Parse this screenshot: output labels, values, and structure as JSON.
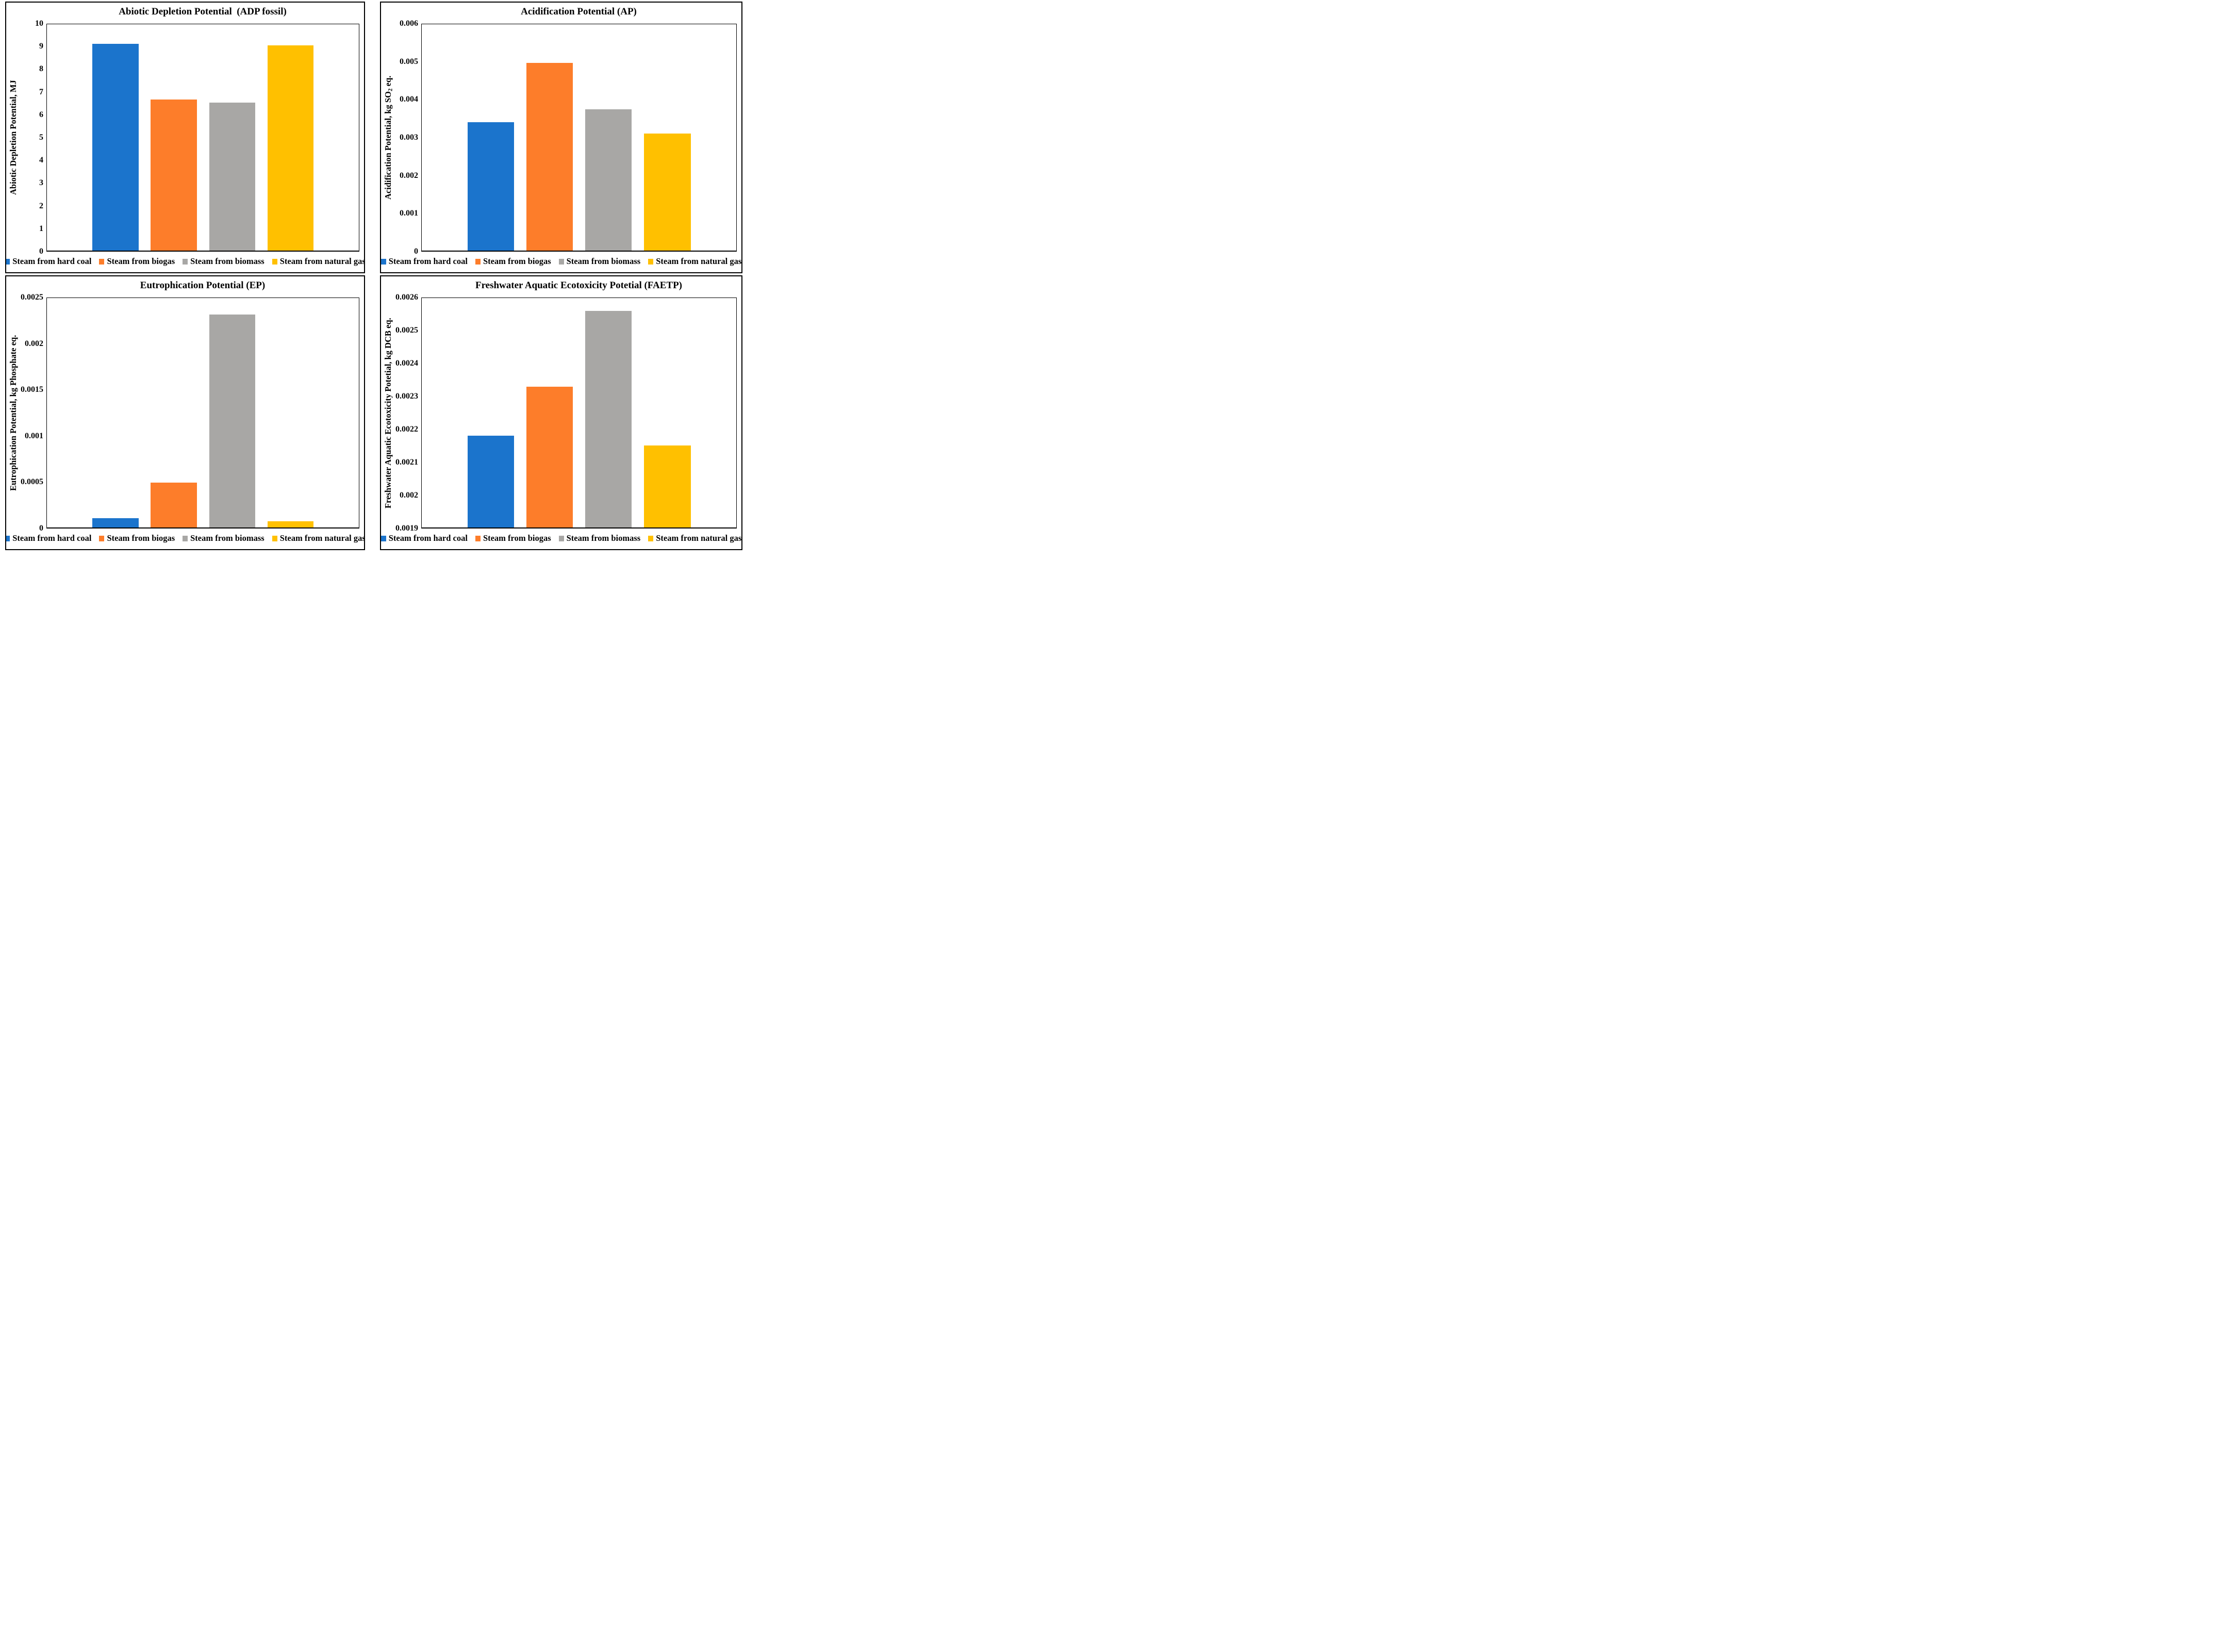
{
  "series": [
    {
      "id": "steam-from-hard-coal",
      "label": "Steam from hard coal",
      "color": "#1B74CC"
    },
    {
      "id": "steam-from-biogas",
      "label": "Steam from biogas",
      "color": "#FD7D2A"
    },
    {
      "id": "steam-from-biomass",
      "label": "Steam from biomass",
      "color": "#A8A7A5"
    },
    {
      "id": "steam-from-natural-gas",
      "label": "Steam from natural gas",
      "color": "#FFC000"
    }
  ],
  "chart_data": [
    {
      "type": "bar",
      "title": "Abiotic Depletion Potential  (ADP fossil)",
      "ylabel": "Abiotic Depletion Potential, MJ",
      "xlabel": "",
      "categories": [
        "Steam from hard coal",
        "Steam from biogas",
        "Steam from biomass",
        "Steam from natural gas"
      ],
      "values": [
        9.13,
        6.68,
        6.53,
        9.07
      ],
      "ylim": [
        0,
        10
      ],
      "grid": false,
      "legend_position": "bottom",
      "yticks": [
        {
          "value": 10,
          "label": "10"
        },
        {
          "value": 9,
          "label": "9"
        },
        {
          "value": 8,
          "label": "8"
        },
        {
          "value": 7,
          "label": "7"
        },
        {
          "value": 6,
          "label": "6"
        },
        {
          "value": 5,
          "label": "5"
        },
        {
          "value": 4,
          "label": "4"
        },
        {
          "value": 3,
          "label": "3"
        },
        {
          "value": 2,
          "label": "2"
        },
        {
          "value": 1,
          "label": "1"
        },
        {
          "value": 0,
          "label": "0"
        }
      ]
    },
    {
      "type": "bar",
      "title": "Acidification Potential (AP)",
      "ylabel": "Acidification Potential, kg SO2 eq.",
      "xlabel": "",
      "categories": [
        "Steam from hard coal",
        "Steam from biogas",
        "Steam from biomass",
        "Steam from natural gas"
      ],
      "values": [
        0.0034,
        0.00497,
        0.00374,
        0.0031
      ],
      "ylim": [
        0,
        0.006
      ],
      "grid": false,
      "legend_position": "bottom",
      "yticks": [
        {
          "value": 0.006,
          "label": "0.006"
        },
        {
          "value": 0.005,
          "label": "0.005"
        },
        {
          "value": 0.004,
          "label": "0.004"
        },
        {
          "value": 0.003,
          "label": "0.003"
        },
        {
          "value": 0.002,
          "label": "0.002"
        },
        {
          "value": 0.001,
          "label": "0.001"
        },
        {
          "value": 0,
          "label": "0"
        }
      ]
    },
    {
      "type": "bar",
      "title": "Eutrophication Potential (EP)",
      "ylabel": "Eutrophication Potential, kg Phosphate eq.",
      "xlabel": "",
      "categories": [
        "Steam from hard coal",
        "Steam from biogas",
        "Steam from biomass",
        "Steam from natural gas"
      ],
      "values": [
        0.0001,
        0.00049,
        0.00232,
        6.5e-05
      ],
      "ylim": [
        0,
        0.0025
      ],
      "grid": false,
      "legend_position": "bottom",
      "yticks": [
        {
          "value": 0.0025,
          "label": "0.0025"
        },
        {
          "value": 0.002,
          "label": "0.002"
        },
        {
          "value": 0.0015,
          "label": "0.0015"
        },
        {
          "value": 0.001,
          "label": "0.001"
        },
        {
          "value": 0.0005,
          "label": "0.0005"
        },
        {
          "value": 0,
          "label": "0"
        }
      ]
    },
    {
      "type": "bar",
      "title": "Freshwater Aquatic Ecotoxicity Potetial (FAETP)",
      "ylabel": "Freshwater Aquatic Ecotoxicity Potetial, kg DCB eq.",
      "xlabel": "",
      "categories": [
        "Steam from hard coal",
        "Steam from biogas",
        "Steam from biomass",
        "Steam from natural gas"
      ],
      "values": [
        0.00218,
        0.00233,
        0.00256,
        0.00215
      ],
      "ylim": [
        0.0019,
        0.0026
      ],
      "grid": false,
      "legend_position": "bottom",
      "yticks": [
        {
          "value": 0.0026,
          "label": "0.0026"
        },
        {
          "value": 0.0025,
          "label": "0.0025"
        },
        {
          "value": 0.0024,
          "label": "0.0024"
        },
        {
          "value": 0.0023,
          "label": "0.0023"
        },
        {
          "value": 0.0022,
          "label": "0.0022"
        },
        {
          "value": 0.0021,
          "label": "0.0021"
        },
        {
          "value": 0.002,
          "label": "0.002"
        },
        {
          "value": 0.0019,
          "label": "0.0019"
        }
      ]
    }
  ]
}
